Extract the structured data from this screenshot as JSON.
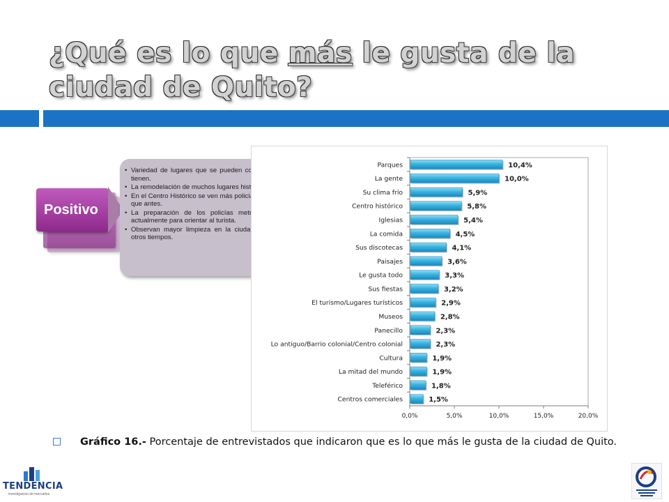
{
  "slide": {
    "title_before": "¿Qué es lo que ",
    "title_underlined": "más",
    "title_after": " le gusta de la ciudad de Quito?",
    "colors": {
      "accent_bar": "#1a73c4",
      "callout": "#9b3f99",
      "notes_bg": "#c7bfcc",
      "bar_fill": "#2aa8d8"
    }
  },
  "callout": {
    "label": "Positivo",
    "notes": [
      "Variedad de lugares que se pueden conocer y la historia que tienen.",
      "La remodelación de muchos lugares históricos de la ciudad.",
      "En el Centro Histórico se ven más policías, está mejor protegido que antes.",
      "La preparación de los policías metropolitanos que tienen actualmente para orientar al turista.",
      "Observan mayor limpieza en la ciudad en comparación con otros tiempos."
    ]
  },
  "caption": {
    "label": "Gráfico 16.-",
    "text": " Porcentaje de entrevistados que indicaron que es lo que más le gusta de la ciudad de Quito."
  },
  "footer": {
    "logo_left_text": "TENDENCIA",
    "logo_left_tagline": "investigación de mercados",
    "logo_right_icon": "quito-turismo-logo-icon"
  },
  "chart_data": {
    "type": "bar",
    "orientation": "horizontal",
    "categories": [
      "Parques",
      "La gente",
      "Su clima frío",
      "Centro histórico",
      "Iglesias",
      "La comida",
      "Sus discotecas",
      "Paisajes",
      "Le gusta todo",
      "Sus fiestas",
      "El turismo/Lugares turísticos",
      "Museos",
      "Panecillo",
      "Lo antiguo/Barrio colonial/Centro colonial",
      "Cultura",
      "La mitad del mundo",
      "Teleférico",
      "Centros comerciales"
    ],
    "values": [
      10.4,
      10.0,
      5.9,
      5.8,
      5.4,
      4.5,
      4.1,
      3.6,
      3.3,
      3.2,
      2.9,
      2.8,
      2.3,
      2.3,
      1.9,
      1.9,
      1.8,
      1.5
    ],
    "value_labels": [
      "10,4%",
      "10,0%",
      "5,9%",
      "5,8%",
      "5,4%",
      "4,5%",
      "4,1%",
      "3,6%",
      "3,3%",
      "3,2%",
      "2,9%",
      "2,8%",
      "2,3%",
      "2,3%",
      "1,9%",
      "1,9%",
      "1,8%",
      "1,5%"
    ],
    "xlim": [
      0,
      20
    ],
    "xticks": [
      0,
      5,
      10,
      15,
      20
    ],
    "xtick_labels": [
      "0,0%",
      "5,0%",
      "10,0%",
      "15,0%",
      "20,0%"
    ],
    "grid": false,
    "title": "",
    "xlabel": "",
    "ylabel": ""
  }
}
